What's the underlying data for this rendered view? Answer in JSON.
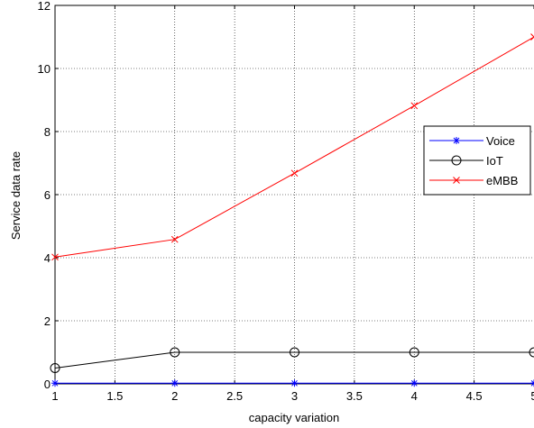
{
  "chart_data": {
    "type": "line",
    "xlabel": "capacity variation",
    "ylabel": "Service data rate",
    "xlim": [
      1,
      5
    ],
    "ylim": [
      0,
      12
    ],
    "xticks": [
      "1",
      "1.5",
      "2",
      "2.5",
      "3",
      "3.5",
      "4",
      "4.5",
      "5"
    ],
    "yticks": [
      "0",
      "2",
      "4",
      "6",
      "8",
      "10",
      "12"
    ],
    "grid": true,
    "legend_position": "right",
    "x": [
      1,
      2,
      3,
      4,
      5
    ],
    "series": [
      {
        "name": "Voice",
        "color": "#0000ff",
        "marker": "asterisk",
        "values": [
          0.02,
          0.02,
          0.02,
          0.02,
          0.02
        ]
      },
      {
        "name": "IoT",
        "color": "#000000",
        "marker": "circle",
        "values": [
          0.5,
          1.0,
          1.0,
          1.0,
          1.0
        ]
      },
      {
        "name": "eMBB",
        "color": "#ff0000",
        "marker": "x",
        "values": [
          4.02,
          4.58,
          6.68,
          8.82,
          11.0
        ]
      }
    ]
  }
}
